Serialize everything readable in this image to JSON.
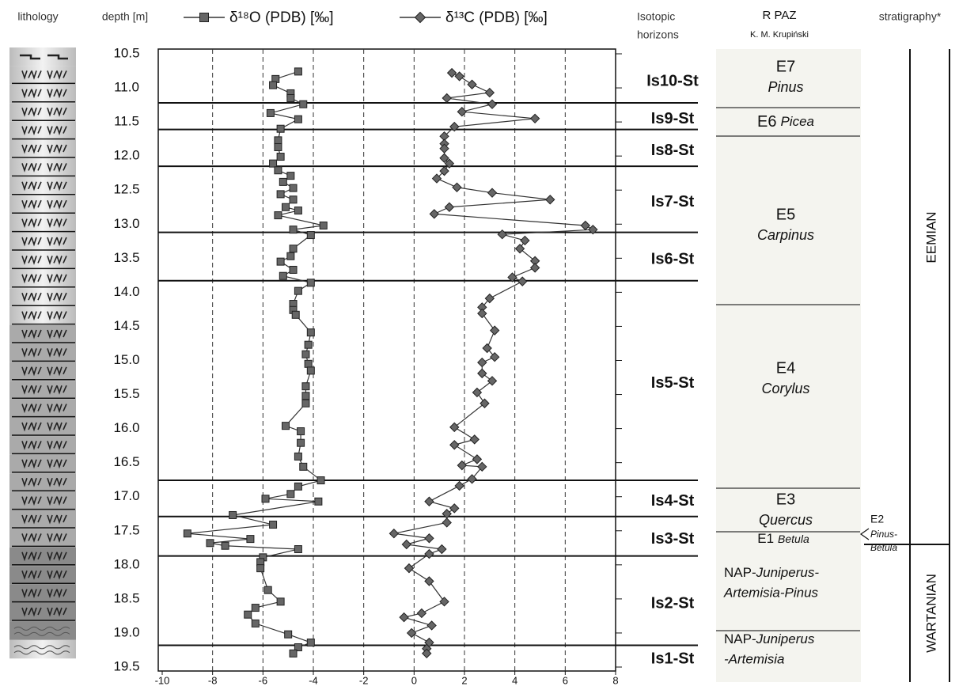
{
  "chart_data": {
    "type": "line",
    "y_label": "depth [m]",
    "lithology_label": "lithology",
    "xlim": [
      -10,
      8
    ],
    "xticks": [
      -10,
      -8,
      -6,
      -4,
      -2,
      0,
      2,
      4,
      6,
      8
    ],
    "ylim": [
      10.5,
      19.5
    ],
    "y_inverted": true,
    "yticks": [
      10.5,
      {
        "value": 11,
        "label": "11.0"
      },
      11.5,
      {
        "value": 12,
        "label": "12.0"
      },
      12.5,
      {
        "value": 13,
        "label": "13.0"
      },
      13.5,
      {
        "value": 14,
        "label": "14.0"
      },
      14.5,
      {
        "value": 15,
        "label": "15.0"
      },
      15.5,
      {
        "value": 16,
        "label": "16.0"
      },
      16.5,
      {
        "value": 17,
        "label": "17.0"
      },
      17.5,
      {
        "value": 18,
        "label": "18.0"
      },
      18.5,
      {
        "value": 19,
        "label": "19.0"
      },
      19.5
    ],
    "grid": true,
    "series": [
      {
        "name": "δ¹⁸O (PDB) [‰]",
        "color": "#333333",
        "marker": "square",
        "values": [
          -4.6,
          -5.5,
          -5.6,
          -4.9,
          -4.9,
          -4.4,
          -5.7,
          -4.6,
          -5.3,
          -5.4,
          -5.4,
          -5.3,
          -5.6,
          -5.4,
          -4.9,
          -5.2,
          -4.8,
          -5.3,
          -4.8,
          -5.1,
          -4.6,
          -5.4,
          -3.6,
          -4.8,
          -4.1,
          -4.8,
          -4.9,
          -5.3,
          -4.8,
          -5.2,
          -4.1,
          -4.6,
          -4.8,
          -4.8,
          -4.7,
          -4.1,
          -4.2,
          -4.3,
          -4.2,
          -4.1,
          -4.3,
          -4.3,
          -4.3,
          -5.1,
          -4.5,
          -4.5,
          -4.6,
          -4.4,
          -3.7,
          -4.6,
          -4.9,
          -5.9,
          -3.8,
          -7.2,
          -5.6,
          -9.0,
          -6.5,
          -8.1,
          -7.5,
          -4.6,
          -6.0,
          -6.1,
          -6.1,
          -5.8,
          -5.3,
          -6.3,
          -6.6,
          -6.3,
          -5.0,
          -4.1,
          -4.6,
          -4.8
        ],
        "depths": [
          10.76,
          10.87,
          10.96,
          11.08,
          11.15,
          11.24,
          11.37,
          11.46,
          11.6,
          11.77,
          11.87,
          12.01,
          12.11,
          12.21,
          12.29,
          12.38,
          12.47,
          12.56,
          12.64,
          12.75,
          12.8,
          12.87,
          13.02,
          13.08,
          13.16,
          13.36,
          13.47,
          13.55,
          13.67,
          13.76,
          13.86,
          13.98,
          14.17,
          14.26,
          14.33,
          14.59,
          14.77,
          14.91,
          15.05,
          15.15,
          15.38,
          15.52,
          15.63,
          15.96,
          16.04,
          16.21,
          16.41,
          16.56,
          16.76,
          16.85,
          16.96,
          17.03,
          17.07,
          17.27,
          17.41,
          17.54,
          17.62,
          17.68,
          17.72,
          17.77,
          17.89,
          17.96,
          18.05,
          18.37,
          18.54,
          18.63,
          18.73,
          18.86,
          19.02,
          19.14,
          19.21,
          19.3
        ]
      },
      {
        "name": "δ¹³C (PDB) [‰]",
        "color": "#333333",
        "marker": "diamond",
        "values": [
          1.5,
          1.8,
          2.3,
          3.0,
          1.3,
          3.1,
          1.9,
          4.8,
          1.6,
          1.2,
          1.2,
          1.2,
          1.2,
          1.4,
          1.2,
          0.9,
          1.7,
          3.1,
          5.4,
          1.4,
          0.8,
          6.8,
          7.1,
          3.5,
          4.4,
          4.2,
          4.8,
          4.8,
          3.9,
          4.3,
          3.0,
          2.7,
          2.7,
          3.2,
          2.9,
          3.2,
          2.7,
          2.7,
          3.1,
          2.5,
          2.8,
          1.6,
          2.4,
          1.6,
          2.5,
          1.9,
          2.7,
          2.3,
          1.8,
          0.6,
          1.6,
          1.3,
          1.3,
          -0.8,
          0.6,
          -0.3,
          1.1,
          0.6,
          -0.2,
          0.6,
          1.2,
          0.3,
          -0.4,
          0.7,
          -0.1,
          0.6,
          0.5,
          0.5
        ],
        "depths": [
          10.78,
          10.83,
          10.95,
          11.07,
          11.15,
          11.24,
          11.35,
          11.45,
          11.57,
          11.71,
          11.82,
          11.89,
          12.03,
          12.11,
          12.22,
          12.33,
          12.46,
          12.54,
          12.64,
          12.75,
          12.85,
          13.02,
          13.08,
          13.15,
          13.24,
          13.36,
          13.54,
          13.64,
          13.78,
          13.84,
          14.09,
          14.22,
          14.31,
          14.56,
          14.82,
          14.95,
          15.03,
          15.19,
          15.3,
          15.47,
          15.63,
          15.98,
          16.16,
          16.24,
          16.45,
          16.54,
          16.56,
          16.74,
          16.84,
          17.07,
          17.17,
          17.25,
          17.38,
          17.54,
          17.61,
          17.7,
          17.77,
          17.84,
          18.05,
          18.24,
          18.54,
          18.71,
          18.77,
          18.89,
          19.0,
          19.14,
          19.23,
          19.3
        ]
      }
    ],
    "horizons": {
      "title": [
        "Isotopic",
        "horizons"
      ],
      "labels": [
        "Is10-St",
        "Is9-St",
        "Is8-St",
        "Is7-St",
        "Is6-St",
        "Is5-St",
        "Is4-St",
        "Is3-St",
        "Is2-St",
        "Is1-St"
      ],
      "boundaries": [
        11.22,
        11.61,
        12.15,
        13.12,
        13.83,
        16.76,
        17.29,
        17.87,
        19.18
      ]
    },
    "paz": {
      "title": "R PAZ",
      "author": "K. M. Krupiński",
      "zones": [
        {
          "code": "E7",
          "taxon": [
            "Pinus"
          ]
        },
        {
          "code": "E6",
          "taxon": [
            "Picea"
          ]
        },
        {
          "code": "E5",
          "taxon": [
            "Carpinus"
          ]
        },
        {
          "code": "E4",
          "taxon": [
            "Corylus"
          ]
        },
        {
          "code": "E3",
          "taxon": [
            "Quercus"
          ]
        },
        {
          "code": "E1",
          "taxon": [
            "Betula"
          ]
        },
        {
          "code": "E2",
          "taxon": [
            "Pinus-",
            "Betula"
          ]
        },
        {
          "code": "NAP-",
          "taxon": [
            "Juniperus-",
            "Artemisia-Pinus"
          ]
        },
        {
          "code": "NAP-",
          "taxon": [
            "Juniperus",
            "-Artemisia"
          ]
        }
      ]
    },
    "stratigraphy": {
      "title": "stratigraphy*",
      "units": [
        "EEMIAN",
        "WARTANIAN"
      ]
    }
  }
}
